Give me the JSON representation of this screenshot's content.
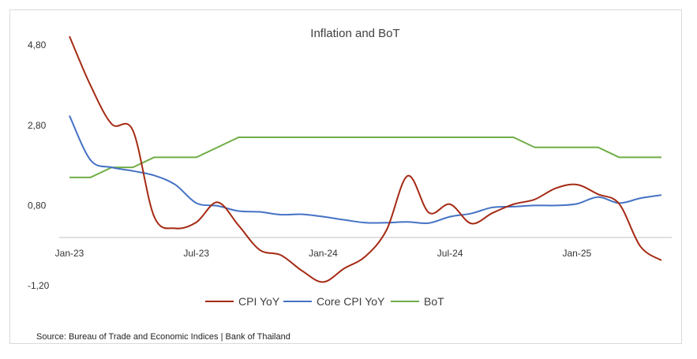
{
  "chart_data": {
    "type": "line",
    "title": "Inflation and BoT",
    "xlabel": "",
    "ylabel": "",
    "ylim": [
      -1.2,
      5.0
    ],
    "yticks": [
      "4,80",
      "2,80",
      "0,80",
      "-1,20"
    ],
    "ytick_values": [
      4.8,
      2.8,
      0.8,
      -1.2
    ],
    "x_tick_labels": [
      "Jan-23",
      "Jul-23",
      "Jan-24",
      "Jul-24",
      "Jan-25"
    ],
    "x_tick_index": [
      0,
      6,
      12,
      18,
      24
    ],
    "x": [
      "Jan-23",
      "Feb-23",
      "Mar-23",
      "Apr-23",
      "May-23",
      "Jun-23",
      "Jul-23",
      "Aug-23",
      "Sep-23",
      "Oct-23",
      "Nov-23",
      "Dec-23",
      "Jan-24",
      "Feb-24",
      "Mar-24",
      "Apr-24",
      "May-24",
      "Jun-24",
      "Jul-24",
      "Aug-24",
      "Sep-24",
      "Oct-24",
      "Nov-24",
      "Dec-24",
      "Jan-25",
      "Feb-25",
      "Mar-25",
      "Apr-25",
      "May-25"
    ],
    "legend_position": "bottom",
    "grid": false,
    "series": [
      {
        "name": "CPI YoY",
        "color": "#a52a14",
        "values": [
          5.02,
          3.79,
          2.83,
          2.67,
          0.53,
          0.23,
          0.38,
          0.88,
          0.3,
          -0.31,
          -0.44,
          -0.83,
          -1.11,
          -0.77,
          -0.47,
          0.19,
          1.54,
          0.62,
          0.83,
          0.35,
          0.61,
          0.83,
          0.95,
          1.23,
          1.32,
          1.08,
          0.84,
          -0.22,
          -0.57
        ]
      },
      {
        "name": "Core CPI YoY",
        "color": "#4472c4",
        "values": [
          3.04,
          1.93,
          1.75,
          1.66,
          1.55,
          1.32,
          0.86,
          0.79,
          0.66,
          0.64,
          0.57,
          0.58,
          0.52,
          0.44,
          0.37,
          0.37,
          0.39,
          0.36,
          0.52,
          0.6,
          0.75,
          0.77,
          0.8,
          0.8,
          0.84,
          1.01,
          0.86,
          0.98,
          1.06
        ]
      },
      {
        "name": "BoT",
        "color": "#70ad47",
        "values": [
          1.5,
          1.5,
          1.75,
          1.75,
          2.0,
          2.0,
          2.0,
          2.25,
          2.5,
          2.5,
          2.5,
          2.5,
          2.5,
          2.5,
          2.5,
          2.5,
          2.5,
          2.5,
          2.5,
          2.5,
          2.5,
          2.5,
          2.25,
          2.25,
          2.25,
          2.25,
          2.0,
          2.0,
          2.0
        ]
      }
    ]
  },
  "source_text": "Source: Bureau of Trade and Economic Indices | Bank of Thailand"
}
